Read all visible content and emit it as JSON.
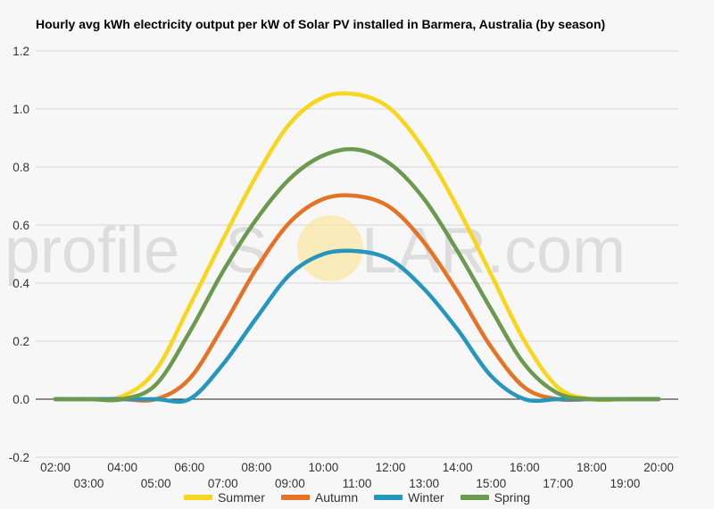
{
  "title": "Hourly avg kWh electricity output per kW of Solar PV installed in Barmera, Australia (by season)",
  "watermark": {
    "text_left": "profile",
    "text_s": "S",
    "text_right": "LAR.com"
  },
  "chart_data": {
    "type": "line",
    "title": "Hourly avg kWh electricity output per kW of Solar PV installed in Barmera, Australia (by season)",
    "xlabel": "",
    "ylabel": "",
    "x": [
      "02:00",
      "03:00",
      "04:00",
      "05:00",
      "06:00",
      "07:00",
      "08:00",
      "09:00",
      "10:00",
      "11:00",
      "12:00",
      "13:00",
      "14:00",
      "15:00",
      "16:00",
      "17:00",
      "18:00",
      "19:00",
      "20:00"
    ],
    "ylim": [
      -0.2,
      1.2
    ],
    "yticks": [
      "-0.2",
      "0.0",
      "0.2",
      "0.4",
      "0.6",
      "0.8",
      "1.0",
      "1.2"
    ],
    "grid": true,
    "legend": "bottom",
    "series": [
      {
        "name": "Summer",
        "color": "#f9d51b",
        "values": [
          0,
          0,
          0.01,
          0.1,
          0.32,
          0.55,
          0.77,
          0.95,
          1.04,
          1.05,
          1.0,
          0.86,
          0.66,
          0.43,
          0.2,
          0.04,
          0,
          0,
          0
        ]
      },
      {
        "name": "Autumn",
        "color": "#e67325",
        "values": [
          0,
          0,
          0,
          0,
          0.07,
          0.25,
          0.45,
          0.61,
          0.69,
          0.7,
          0.66,
          0.54,
          0.37,
          0.18,
          0.04,
          0,
          0,
          0,
          0
        ]
      },
      {
        "name": "Winter",
        "color": "#2596be",
        "values": [
          0,
          0,
          0,
          0,
          0,
          0.12,
          0.28,
          0.43,
          0.5,
          0.51,
          0.48,
          0.38,
          0.24,
          0.08,
          0,
          0,
          0,
          0,
          0
        ]
      },
      {
        "name": "Spring",
        "color": "#6b9a4e",
        "values": [
          0,
          0,
          0,
          0.05,
          0.23,
          0.44,
          0.62,
          0.76,
          0.84,
          0.86,
          0.81,
          0.69,
          0.51,
          0.31,
          0.12,
          0.02,
          0,
          0,
          0
        ]
      }
    ]
  }
}
